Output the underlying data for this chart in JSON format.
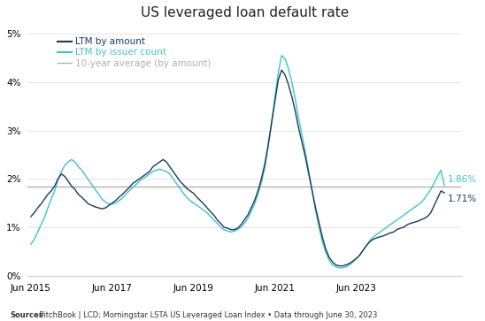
{
  "title": "US leveraged loan default rate",
  "title_fontsize": 11,
  "background_color": "#ffffff",
  "ten_year_avg": 1.84,
  "color_amount": "#1a3a5c",
  "color_issuer": "#40c4c8",
  "color_avg": "#b0b0b0",
  "label_amount": "LTM by amount",
  "label_issuer": "LTM by issuer count",
  "label_avg": "10-year average (by amount)",
  "end_label_issuer": "1.86%",
  "end_label_amount": "1.71%",
  "sources_bold": "Sources",
  "sources_rest": ": PitchBook | LCD; Morningstar LSTA US Leveraged Loan Index • Data through June 30, 2023",
  "ylim": [
    0.0,
    0.052
  ],
  "yticks": [
    0.0,
    0.01,
    0.02,
    0.03,
    0.04,
    0.05
  ],
  "ytick_labels": [
    "0%",
    "1%",
    "2%",
    "3%",
    "4%",
    "5%"
  ],
  "amount_data": [
    0.0122,
    0.013,
    0.014,
    0.0148,
    0.0158,
    0.0168,
    0.0175,
    0.0185,
    0.02,
    0.021,
    0.0205,
    0.0195,
    0.0185,
    0.0178,
    0.0168,
    0.0162,
    0.0155,
    0.0148,
    0.0145,
    0.0142,
    0.014,
    0.0138,
    0.014,
    0.0145,
    0.015,
    0.0155,
    0.0162,
    0.0168,
    0.0175,
    0.0182,
    0.019,
    0.0195,
    0.02,
    0.0205,
    0.021,
    0.0215,
    0.0225,
    0.023,
    0.0235,
    0.024,
    0.0235,
    0.0225,
    0.0215,
    0.0205,
    0.0195,
    0.0188,
    0.018,
    0.0175,
    0.017,
    0.0162,
    0.0155,
    0.0148,
    0.014,
    0.0132,
    0.0125,
    0.0115,
    0.0108,
    0.01,
    0.0098,
    0.0095,
    0.0095,
    0.0098,
    0.0105,
    0.0115,
    0.0125,
    0.014,
    0.0155,
    0.0175,
    0.02,
    0.023,
    0.027,
    0.0315,
    0.036,
    0.0405,
    0.0425,
    0.0415,
    0.0395,
    0.037,
    0.034,
    0.0305,
    0.0275,
    0.0245,
    0.021,
    0.0175,
    0.014,
    0.011,
    0.008,
    0.0055,
    0.0038,
    0.0028,
    0.0022,
    0.002,
    0.002,
    0.0022,
    0.0025,
    0.003,
    0.0035,
    0.0042,
    0.0052,
    0.0062,
    0.007,
    0.0075,
    0.0078,
    0.008,
    0.0082,
    0.0085,
    0.0088,
    0.009,
    0.0095,
    0.0098,
    0.01,
    0.0105,
    0.0108,
    0.011,
    0.0112,
    0.0115,
    0.0118,
    0.0122,
    0.013,
    0.0145,
    0.016,
    0.0175,
    0.0171
  ],
  "issuer_data": [
    0.0065,
    0.0075,
    0.009,
    0.0105,
    0.012,
    0.014,
    0.0158,
    0.0175,
    0.0198,
    0.0215,
    0.0228,
    0.0235,
    0.024,
    0.0235,
    0.0225,
    0.0218,
    0.0208,
    0.0198,
    0.0188,
    0.0178,
    0.0168,
    0.0158,
    0.0152,
    0.0148,
    0.0148,
    0.015,
    0.0155,
    0.016,
    0.0168,
    0.0175,
    0.0182,
    0.0188,
    0.0195,
    0.02,
    0.0205,
    0.021,
    0.0215,
    0.0218,
    0.022,
    0.0218,
    0.0215,
    0.021,
    0.02,
    0.019,
    0.018,
    0.017,
    0.0162,
    0.0155,
    0.015,
    0.0145,
    0.014,
    0.0135,
    0.013,
    0.0122,
    0.0115,
    0.0108,
    0.01,
    0.0095,
    0.0092,
    0.009,
    0.0092,
    0.0095,
    0.01,
    0.0108,
    0.0118,
    0.0132,
    0.0148,
    0.0168,
    0.0192,
    0.0222,
    0.0265,
    0.0315,
    0.0368,
    0.042,
    0.0455,
    0.0448,
    0.0428,
    0.04,
    0.0365,
    0.0325,
    0.029,
    0.0255,
    0.0215,
    0.0175,
    0.0135,
    0.01,
    0.007,
    0.0048,
    0.0032,
    0.0022,
    0.0018,
    0.0016,
    0.0016,
    0.0018,
    0.0022,
    0.0028,
    0.0035,
    0.0042,
    0.0052,
    0.0062,
    0.0072,
    0.008,
    0.0085,
    0.009,
    0.0095,
    0.01,
    0.0105,
    0.011,
    0.0115,
    0.012,
    0.0125,
    0.013,
    0.0135,
    0.014,
    0.0145,
    0.015,
    0.0158,
    0.0168,
    0.0178,
    0.0192,
    0.0205,
    0.0218,
    0.0186
  ],
  "xtick_positions": [
    0,
    24,
    48,
    72,
    96
  ],
  "xtick_labels": [
    "Jun 2015",
    "Jun 2017",
    "Jun 2019",
    "Jun 2021",
    "Jun 2023"
  ]
}
